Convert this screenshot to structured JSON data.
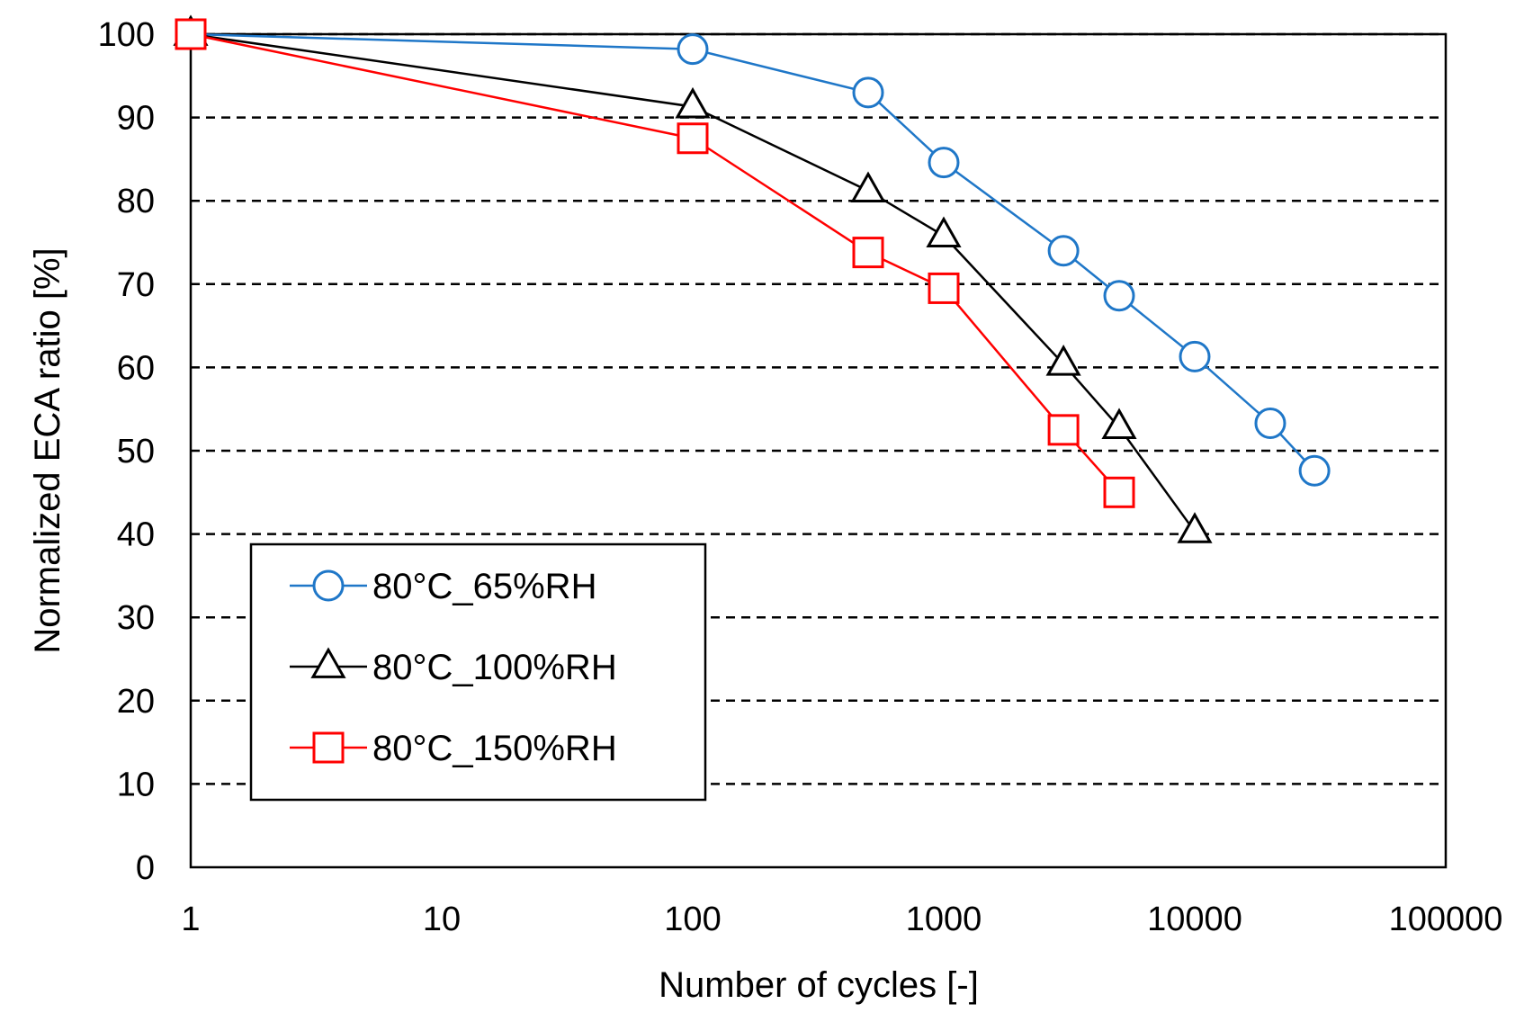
{
  "chart_data": {
    "type": "line",
    "title": "",
    "xlabel": "Number of cycles [-]",
    "ylabel": "Normalized ECA ratio [%]",
    "xscale": "log",
    "xlim": [
      1,
      100000
    ],
    "ylim": [
      0,
      100
    ],
    "xticks": [
      1,
      10,
      100,
      1000,
      10000,
      100000
    ],
    "xtick_labels": [
      "1",
      "10",
      "100",
      "1000",
      "10000",
      "100000"
    ],
    "yticks": [
      0,
      10,
      20,
      30,
      40,
      50,
      60,
      70,
      80,
      90,
      100
    ],
    "ytick_labels": [
      "0",
      "10",
      "20",
      "30",
      "40",
      "50",
      "60",
      "70",
      "80",
      "90",
      "100"
    ],
    "grid": "horizontal dashed",
    "legend_position": "bottom-left",
    "series": [
      {
        "name": "80°C_65%RH",
        "color": "#1f77c8",
        "marker": "circle",
        "x": [
          1,
          100,
          500,
          1000,
          3000,
          5000,
          10000,
          20000,
          30000
        ],
        "y": [
          100,
          98.2,
          93,
          84.6,
          74,
          68.6,
          61.3,
          53.3,
          47.6
        ]
      },
      {
        "name": "80°C_100%RH",
        "color": "#000000",
        "marker": "triangle",
        "x": [
          1,
          100,
          500,
          1000,
          3000,
          5000,
          10000
        ],
        "y": [
          100,
          91.3,
          81.2,
          75.8,
          60.4,
          52.8,
          40.3
        ]
      },
      {
        "name": "80°C_150%RH",
        "color": "#ff0000",
        "marker": "square",
        "x": [
          1,
          100,
          500,
          1000,
          3000,
          5000
        ],
        "y": [
          100,
          87.5,
          73.8,
          69.5,
          52.5,
          45
        ]
      }
    ]
  }
}
